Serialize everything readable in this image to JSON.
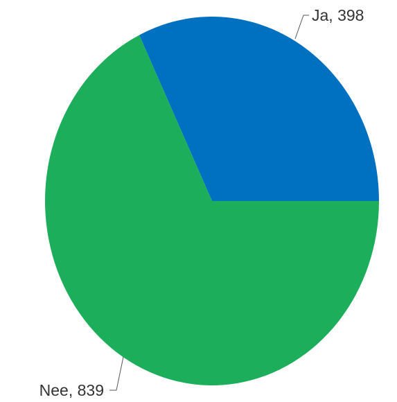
{
  "chart_data": {
    "type": "pie",
    "title": "",
    "slices": [
      {
        "label": "Ja",
        "value": 398,
        "color": "#0070C0",
        "data_label": "Ja, 398"
      },
      {
        "label": "Nee",
        "value": 839,
        "color": "#1DAE5B",
        "data_label": "Nee, 839"
      }
    ],
    "start_angle_deg": 0,
    "direction": "counterclockwise",
    "legend": "none"
  }
}
